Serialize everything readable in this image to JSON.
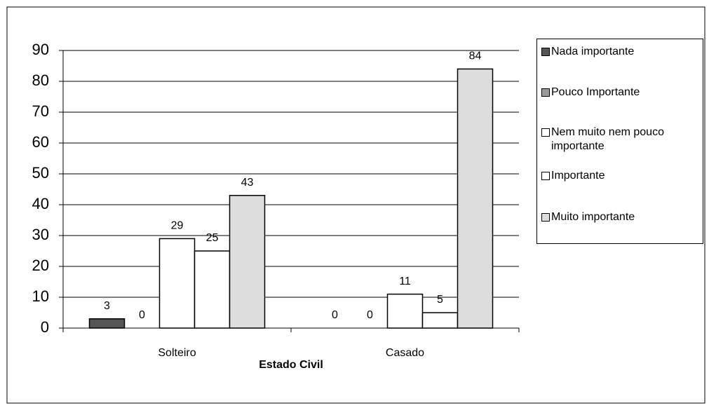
{
  "chart_data": {
    "type": "bar",
    "categories": [
      "Solteiro",
      "Casado"
    ],
    "xlabel": "Estado Civil",
    "series": [
      {
        "name": "Nada importante",
        "color": "#555555",
        "values": [
          3,
          0
        ]
      },
      {
        "name": "Pouco Importante",
        "color": "#999999",
        "values": [
          0,
          0
        ]
      },
      {
        "name": "Nem muito nem pouco importante",
        "color": "#ffffff",
        "values": [
          29,
          11
        ]
      },
      {
        "name": "Importante",
        "color": "#ffffff",
        "values": [
          25,
          5
        ]
      },
      {
        "name": "Muito importante",
        "color": "#dddddd",
        "values": [
          43,
          84
        ]
      }
    ],
    "ylim": [
      0,
      90
    ],
    "yticks": [
      0,
      10,
      20,
      30,
      40,
      50,
      60,
      70,
      80,
      90
    ],
    "grid": true,
    "legend": "right"
  }
}
